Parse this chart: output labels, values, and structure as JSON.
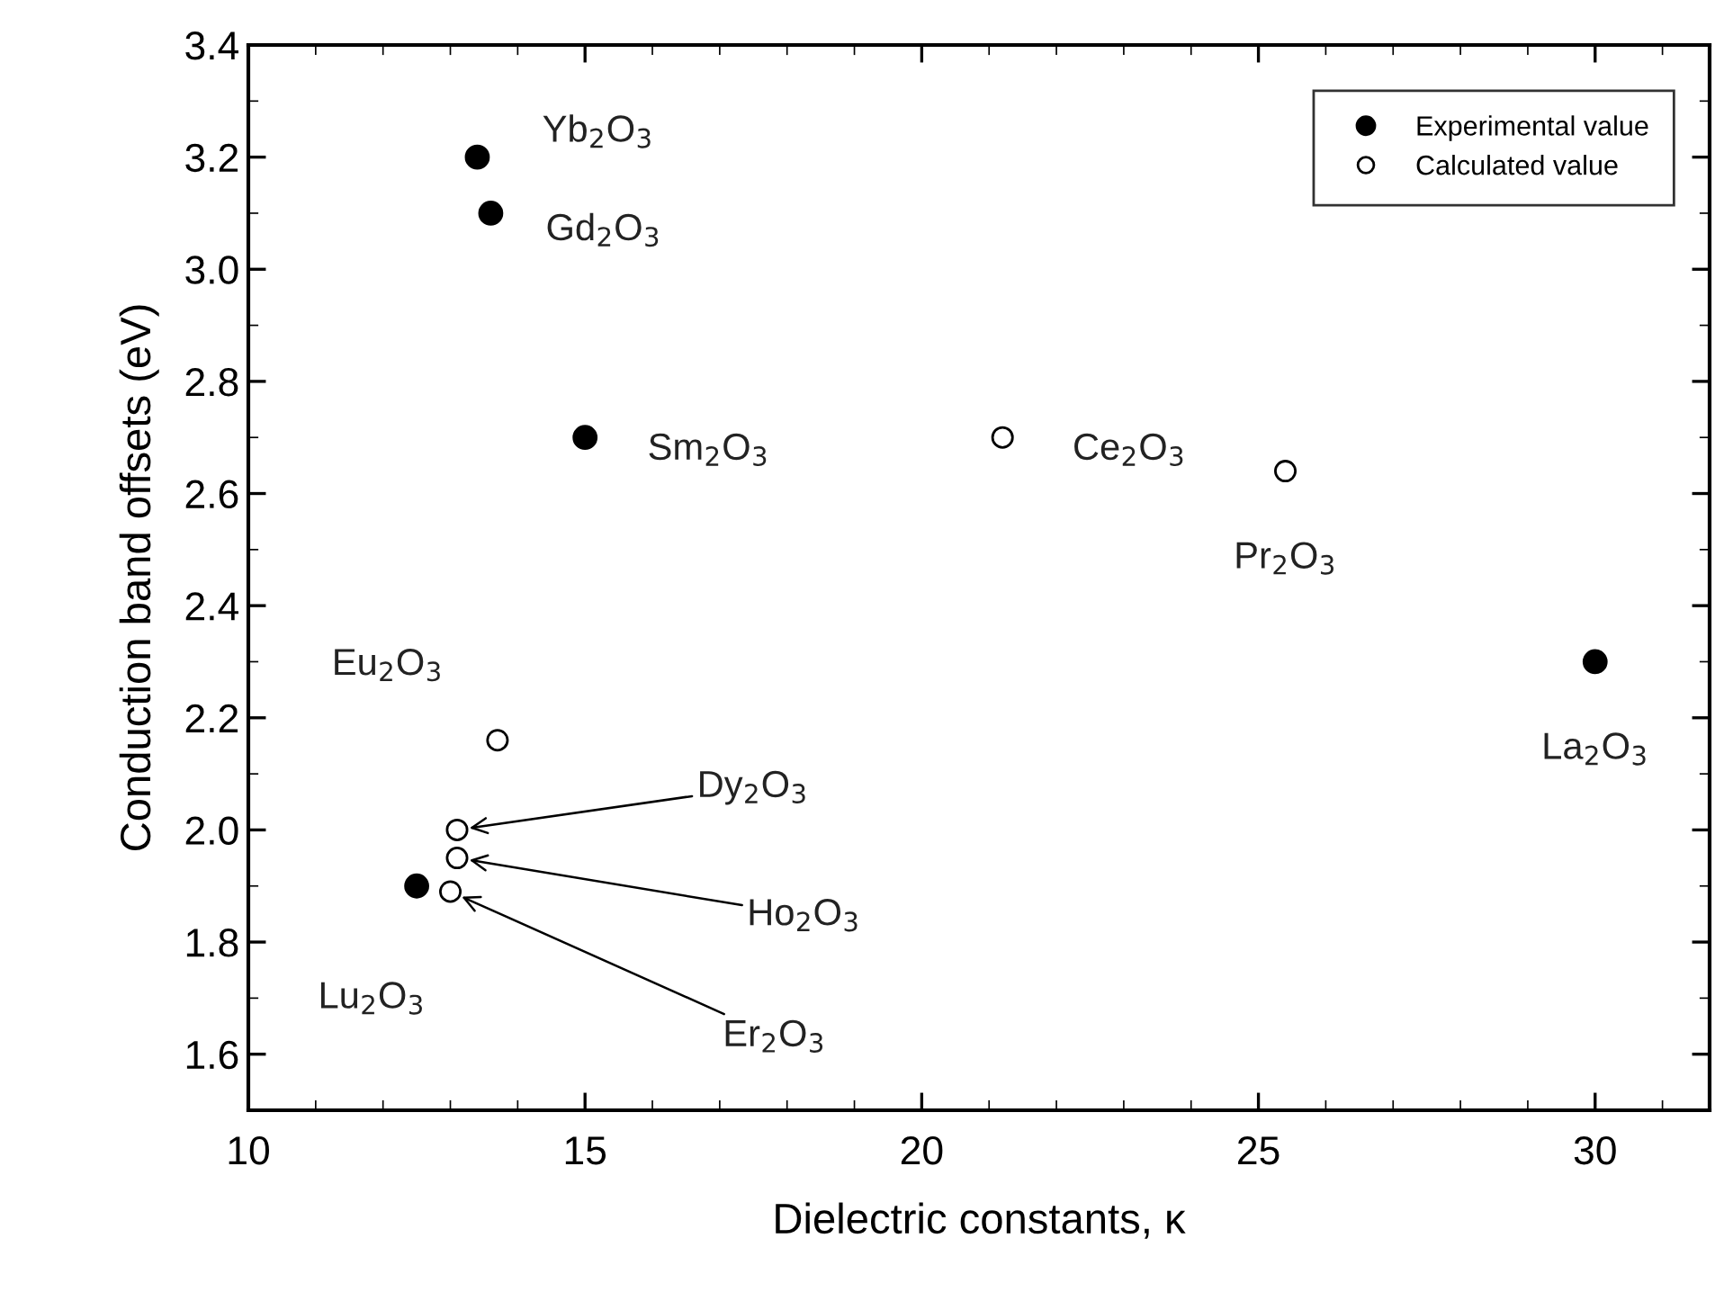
{
  "chart_data": {
    "type": "scatter",
    "xlabel": "Dielectric constants, κ",
    "ylabel": "Conduction band offsets (eV)",
    "series": [
      {
        "name": "Experimental value",
        "color": "#000000",
        "x": [
          13.4,
          13.6,
          15.0,
          30.0,
          12.5
        ],
        "values": [
          3.2,
          3.1,
          2.7,
          2.3,
          1.9
        ]
      },
      {
        "name": "Calculated value",
        "color": "#ffffff",
        "x": [
          21.2,
          25.4,
          13.7,
          13.1,
          13.1,
          13.0
        ],
        "values": [
          2.7,
          2.64,
          2.16,
          2.0,
          1.95,
          1.89
        ]
      }
    ],
    "annotations": [
      {
        "text": "Yb$_{2}$O$_{3}$",
        "x": 13.4,
        "y": 3.2
      },
      {
        "text": "Gd$_{2}$O$_{3}$",
        "x": 13.6,
        "y": 3.1
      },
      {
        "text": "Sm$_{2}$O$_{3}$",
        "x": 15.0,
        "y": 2.7
      },
      {
        "text": "Ce$_{2}$O$_{3}$",
        "x": 21.2,
        "y": 2.7
      },
      {
        "text": "Pr$_{2}$O$_{3}$",
        "x": 25.4,
        "y": 2.64
      },
      {
        "text": "La$_{2}$O$_{3}$",
        "x": 30.0,
        "y": 2.3
      },
      {
        "text": "Eu$_{2}$O$_{3}$",
        "x": 13.7,
        "y": 2.16
      },
      {
        "text": "Dy$_{2}$O$_{3}$",
        "x": 13.1,
        "y": 2.0
      },
      {
        "text": "Ho$_{2}$O$_{3}$",
        "x": 13.1,
        "y": 1.95
      },
      {
        "text": "Er$_{2}$O$_{3}$",
        "x": 13.0,
        "y": 1.89
      },
      {
        "text": "Lu$_{2}$O$_{3}$",
        "x": 12.5,
        "y": 1.9
      }
    ],
    "xlim": [
      10,
      31.7
    ],
    "ylim": [
      1.5,
      3.4
    ],
    "xticks": [
      10,
      15,
      20,
      25,
      30
    ],
    "yticks": [
      1.6,
      1.8,
      {
        "value": 2,
        "label": "2.0"
      },
      2.2,
      2.4,
      2.6,
      2.8,
      {
        "value": 3,
        "label": "3.0"
      },
      3.2,
      3.4
    ],
    "marker": "circle",
    "legend": "top right",
    "grid": false
  }
}
